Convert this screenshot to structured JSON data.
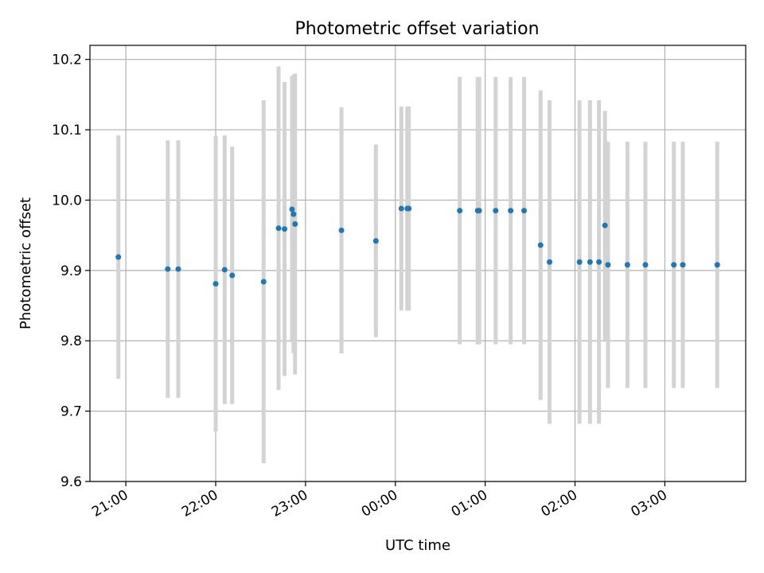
{
  "chart_data": {
    "type": "scatter",
    "title": "Photometric offset variation",
    "xlabel": "UTC time",
    "ylabel": "Photometric offset",
    "x_axis": "time",
    "xlim": [
      "20:36",
      "03:54"
    ],
    "ylim": [
      9.6,
      10.22
    ],
    "x_ticks": [
      "21:00",
      "22:00",
      "23:00",
      "00:00",
      "01:00",
      "02:00",
      "03:00"
    ],
    "y_ticks": [
      "9.6",
      "9.7",
      "9.8",
      "9.9",
      "10.0",
      "10.1",
      "10.2"
    ],
    "grid": true,
    "marker_color": "#1f77b4",
    "errorbar_color": "#d3d3d3",
    "points": [
      {
        "x": "20:55",
        "y": 9.919,
        "err": 0.173
      },
      {
        "x": "21:28",
        "y": 9.902,
        "err": 0.183
      },
      {
        "x": "21:35",
        "y": 9.902,
        "err": 0.183
      },
      {
        "x": "22:00",
        "y": 9.881,
        "err": 0.21
      },
      {
        "x": "22:06",
        "y": 9.901,
        "err": 0.191
      },
      {
        "x": "22:11",
        "y": 9.893,
        "err": 0.183
      },
      {
        "x": "22:32",
        "y": 9.884,
        "err": 0.258
      },
      {
        "x": "22:42",
        "y": 9.96,
        "err": 0.23
      },
      {
        "x": "22:46",
        "y": 9.959,
        "err": 0.209
      },
      {
        "x": "22:51",
        "y": 9.987,
        "err": 0.189
      },
      {
        "x": "22:52",
        "y": 9.98,
        "err": 0.198
      },
      {
        "x": "22:53",
        "y": 9.966,
        "err": 0.214
      },
      {
        "x": "23:24",
        "y": 9.957,
        "err": 0.175
      },
      {
        "x": "23:47",
        "y": 9.942,
        "err": 0.137
      },
      {
        "x": "00:04",
        "y": 9.988,
        "err": 0.145
      },
      {
        "x": "00:08",
        "y": 9.988,
        "err": 0.145
      },
      {
        "x": "00:09",
        "y": 9.988,
        "err": 0.145
      },
      {
        "x": "00:43",
        "y": 9.985,
        "err": 0.19
      },
      {
        "x": "00:55",
        "y": 9.985,
        "err": 0.19
      },
      {
        "x": "00:56",
        "y": 9.985,
        "err": 0.19
      },
      {
        "x": "01:07",
        "y": 9.985,
        "err": 0.19
      },
      {
        "x": "01:17",
        "y": 9.985,
        "err": 0.19
      },
      {
        "x": "01:26",
        "y": 9.985,
        "err": 0.19
      },
      {
        "x": "01:37",
        "y": 9.936,
        "err": 0.22
      },
      {
        "x": "01:43",
        "y": 9.912,
        "err": 0.23
      },
      {
        "x": "02:03",
        "y": 9.912,
        "err": 0.23
      },
      {
        "x": "02:10",
        "y": 9.912,
        "err": 0.23
      },
      {
        "x": "02:16",
        "y": 9.912,
        "err": 0.23
      },
      {
        "x": "02:20",
        "y": 9.964,
        "err": 0.163
      },
      {
        "x": "02:22",
        "y": 9.908,
        "err": 0.175
      },
      {
        "x": "02:35",
        "y": 9.908,
        "err": 0.175
      },
      {
        "x": "02:47",
        "y": 9.908,
        "err": 0.175
      },
      {
        "x": "03:06",
        "y": 9.908,
        "err": 0.175
      },
      {
        "x": "03:12",
        "y": 9.908,
        "err": 0.175
      },
      {
        "x": "03:35",
        "y": 9.908,
        "err": 0.175
      }
    ]
  }
}
